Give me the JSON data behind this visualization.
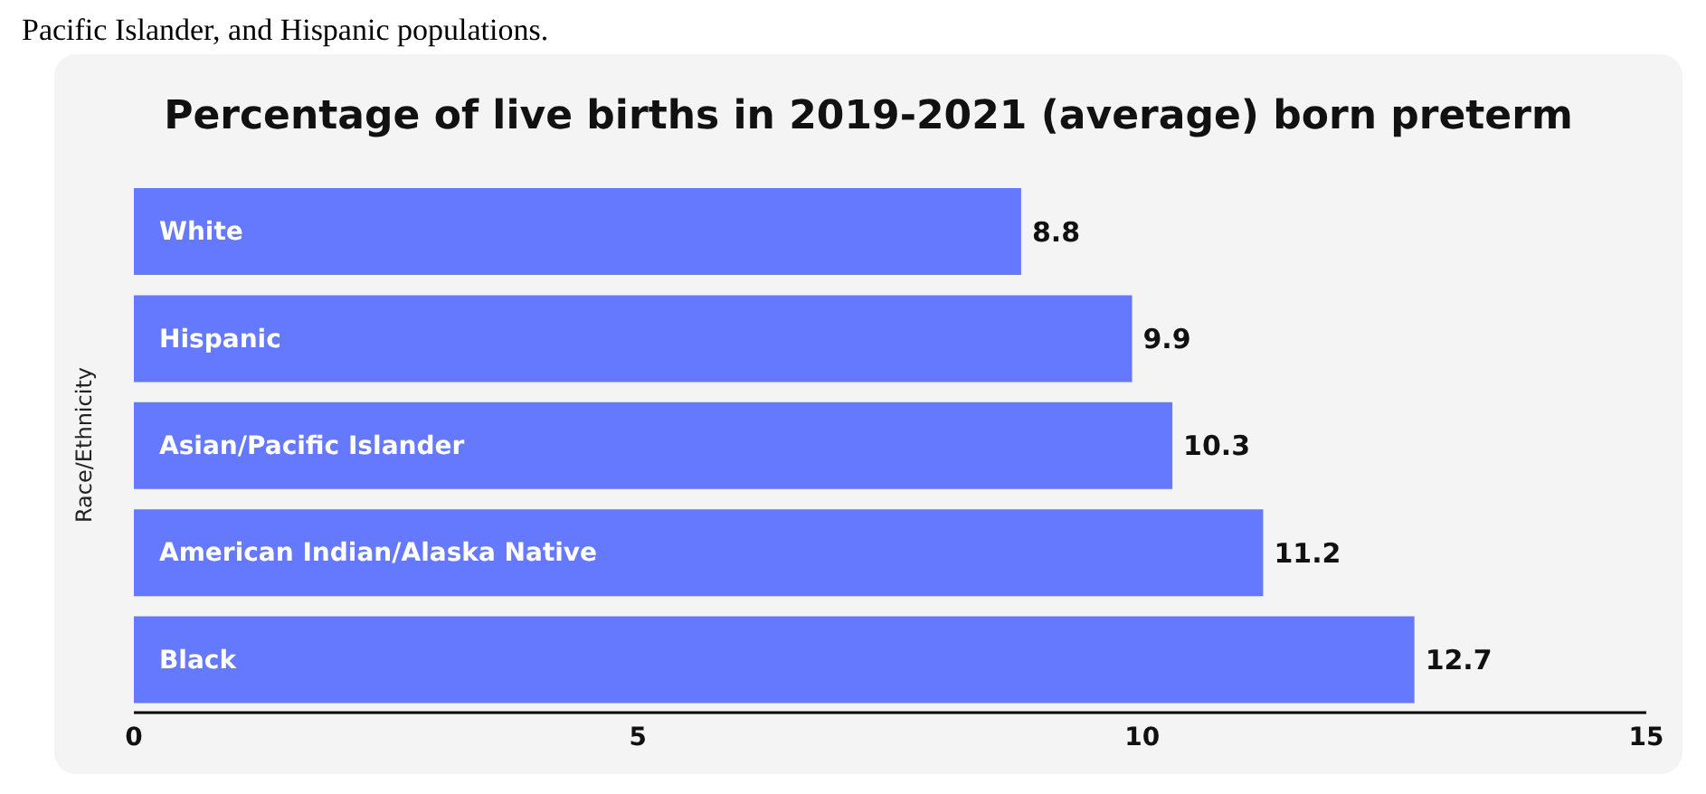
{
  "chart_data": {
    "type": "bar",
    "orientation": "horizontal",
    "title": "Percentage of live births in 2019-2021 (average) born preterm",
    "ylabel": "Race/Ethnicity",
    "annotations": [
      "Pacific Islander, and Hispanic populations."
    ],
    "categories": [
      "White",
      "Hispanic",
      "Asian/Pacific Islander",
      "American Indian/Alaska Native",
      "Black"
    ],
    "values": [
      8.8,
      9.9,
      10.3,
      11.2,
      12.7
    ],
    "color": "#6479fd",
    "xlim": [
      0,
      15
    ],
    "xticks": [
      0,
      5,
      10,
      15
    ],
    "data_labels": true,
    "grid": false,
    "legend": false
  }
}
